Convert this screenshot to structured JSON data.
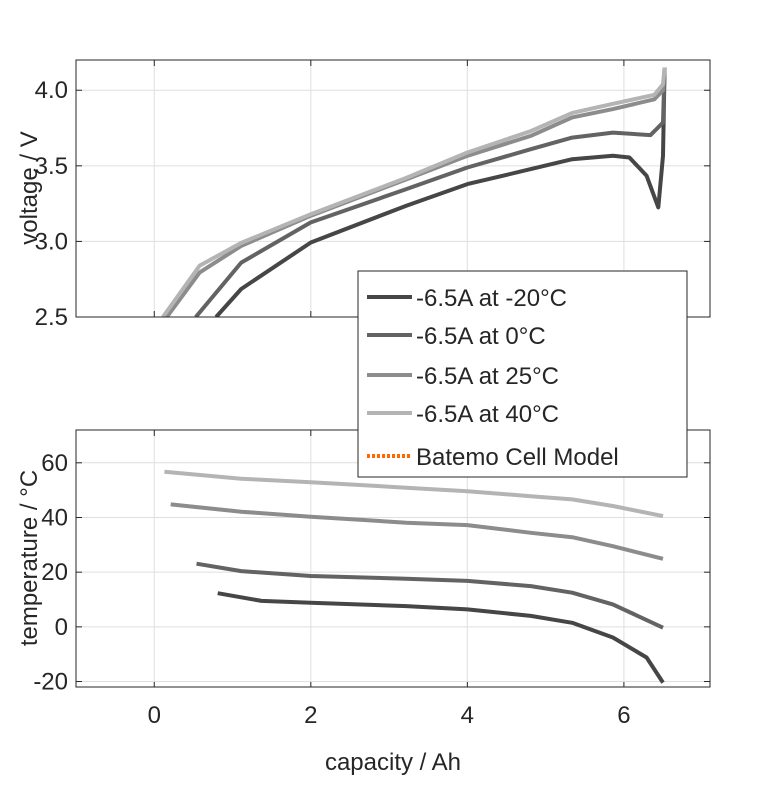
{
  "chart_data": [
    {
      "type": "line",
      "title": "",
      "xlabel": "",
      "ylabel": "voltage / V",
      "xlim": [
        -1,
        7.1
      ],
      "ylim": [
        2.5,
        4.2
      ],
      "xticks": [
        0,
        2,
        4,
        6
      ],
      "yticks": [
        2.5,
        3.0,
        3.5,
        4.0
      ],
      "ytick_labels": [
        "2.5",
        "3.0",
        "3.5",
        "4.0"
      ],
      "grid": true,
      "series": [
        {
          "name": "-6.5A at -20°C",
          "color": "#464646",
          "points": [
            [
              0.79,
              2.5
            ],
            [
              1.11,
              2.685
            ],
            [
              2.0,
              2.993
            ],
            [
              3.22,
              3.236
            ],
            [
              4.0,
              3.379
            ],
            [
              4.81,
              3.478
            ],
            [
              5.34,
              3.544
            ],
            [
              5.86,
              3.566
            ],
            [
              6.07,
              3.555
            ],
            [
              6.29,
              3.434
            ],
            [
              6.44,
              3.225
            ],
            [
              6.5,
              3.566
            ],
            [
              6.52,
              4.15
            ]
          ]
        },
        {
          "name": "-6.5A at 0°C",
          "color": "#636363",
          "points": [
            [
              0.53,
              2.5
            ],
            [
              1.11,
              2.86
            ],
            [
              2.0,
              3.126
            ],
            [
              3.22,
              3.346
            ],
            [
              4.0,
              3.489
            ],
            [
              4.81,
              3.61
            ],
            [
              5.34,
              3.687
            ],
            [
              5.86,
              3.72
            ],
            [
              6.34,
              3.703
            ],
            [
              6.5,
              3.786
            ],
            [
              6.52,
              4.15
            ]
          ]
        },
        {
          "name": "-6.5A at 25°C",
          "color": "#8c8c8c",
          "points": [
            [
              0.16,
              2.5
            ],
            [
              0.58,
              2.795
            ],
            [
              1.11,
              2.97
            ],
            [
              2.0,
              3.17
            ],
            [
              3.22,
              3.41
            ],
            [
              4.0,
              3.566
            ],
            [
              4.81,
              3.698
            ],
            [
              5.34,
              3.82
            ],
            [
              5.86,
              3.875
            ],
            [
              6.39,
              3.94
            ],
            [
              6.5,
              4.0
            ],
            [
              6.52,
              4.15
            ]
          ]
        },
        {
          "name": "-6.5A at 40°C",
          "color": "#b4b4b4",
          "points": [
            [
              0.11,
              2.5
            ],
            [
              0.58,
              2.84
            ],
            [
              1.11,
              2.99
            ],
            [
              2.0,
              3.18
            ],
            [
              3.22,
              3.42
            ],
            [
              4.0,
              3.588
            ],
            [
              4.81,
              3.73
            ],
            [
              5.34,
              3.85
            ],
            [
              5.86,
              3.91
            ],
            [
              6.39,
              3.97
            ],
            [
              6.5,
              4.04
            ],
            [
              6.52,
              4.15
            ]
          ]
        }
      ],
      "legend": {
        "placement": "bottom-right",
        "entries": [
          {
            "label": "-6.5A at -20°C",
            "color": "#464646",
            "style": "solid"
          },
          {
            "label": "-6.5A at 0°C",
            "color": "#636363",
            "style": "solid"
          },
          {
            "label": "-6.5A at 25°C",
            "color": "#8c8c8c",
            "style": "solid"
          },
          {
            "label": "-6.5A at 40°C",
            "color": "#b4b4b4",
            "style": "solid"
          },
          {
            "label": "Batemo Cell Model",
            "color": "#ff6600",
            "style": "dotted"
          }
        ]
      }
    },
    {
      "type": "line",
      "title": "",
      "xlabel": "capacity / Ah",
      "ylabel": "temperature / °C",
      "xlim": [
        -1,
        7.1
      ],
      "ylim": [
        -22,
        72
      ],
      "xticks": [
        0,
        2,
        4,
        6
      ],
      "xtick_labels": [
        "0",
        "2",
        "4",
        "6"
      ],
      "yticks": [
        -20,
        0,
        20,
        40,
        60
      ],
      "ytick_labels": [
        "-20",
        "0",
        "20",
        "40",
        "60"
      ],
      "grid": true,
      "series": [
        {
          "name": "-6.5A at -20°C",
          "color": "#464646",
          "points": [
            [
              0.81,
              12.3
            ],
            [
              1.37,
              9.5
            ],
            [
              2.0,
              8.8
            ],
            [
              3.22,
              7.6
            ],
            [
              4.0,
              6.4
            ],
            [
              4.81,
              4.0
            ],
            [
              5.34,
              1.5
            ],
            [
              5.86,
              -3.9
            ],
            [
              6.29,
              -11.2
            ],
            [
              6.5,
              -20.4
            ]
          ]
        },
        {
          "name": "-6.5A at 0°C",
          "color": "#636363",
          "points": [
            [
              0.54,
              23.1
            ],
            [
              1.11,
              20.4
            ],
            [
              2.0,
              18.6
            ],
            [
              3.22,
              17.6
            ],
            [
              4.0,
              16.8
            ],
            [
              4.81,
              14.9
            ],
            [
              5.34,
              12.5
            ],
            [
              5.86,
              8.2
            ],
            [
              6.5,
              -0.3
            ]
          ]
        },
        {
          "name": "-6.5A at 25°C",
          "color": "#8c8c8c",
          "points": [
            [
              0.21,
              44.8
            ],
            [
              1.11,
              42.1
            ],
            [
              2.0,
              40.3
            ],
            [
              3.22,
              38.1
            ],
            [
              4.0,
              37.2
            ],
            [
              4.81,
              34.4
            ],
            [
              5.34,
              32.8
            ],
            [
              5.86,
              29.5
            ],
            [
              6.5,
              24.9
            ]
          ]
        },
        {
          "name": "-6.5A at 40°C",
          "color": "#b4b4b4",
          "points": [
            [
              0.13,
              56.7
            ],
            [
              1.11,
              54.2
            ],
            [
              2.0,
              52.9
            ],
            [
              3.22,
              50.9
            ],
            [
              4.0,
              49.6
            ],
            [
              4.81,
              47.8
            ],
            [
              5.34,
              46.6
            ],
            [
              5.86,
              44.2
            ],
            [
              6.5,
              40.5
            ]
          ]
        }
      ]
    }
  ]
}
